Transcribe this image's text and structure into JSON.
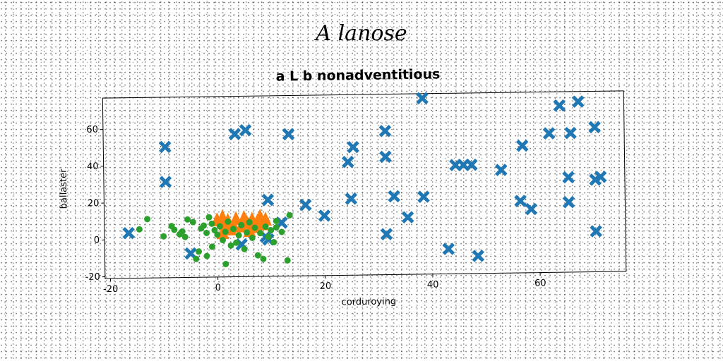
{
  "figure_title": "A lanose",
  "chart_data": {
    "type": "scatter",
    "title": "a L b nonadventitious",
    "xlabel": "corduroying",
    "ylabel": "ballaster",
    "xlim": [
      -21,
      76
    ],
    "ylim": [
      -21,
      77
    ],
    "xticks": [
      -20,
      0,
      20,
      40,
      60
    ],
    "yticks": [
      -20,
      0,
      20,
      40,
      60
    ],
    "grid": false,
    "series": [
      {
        "marker": "x",
        "color": "#1f77b4",
        "points": [
          [
            38.5,
            74.5
          ],
          [
            67.5,
            71.5
          ],
          [
            64,
            69.5
          ],
          [
            5.5,
            58.5
          ],
          [
            3.5,
            56.5
          ],
          [
            13.5,
            56
          ],
          [
            31.5,
            57
          ],
          [
            70.5,
            57.5
          ],
          [
            62,
            54.5
          ],
          [
            66,
            54.5
          ],
          [
            -9.5,
            50
          ],
          [
            25.5,
            48.5
          ],
          [
            57,
            48
          ],
          [
            31.5,
            43
          ],
          [
            24.5,
            40.5
          ],
          [
            44.5,
            38
          ],
          [
            46,
            38
          ],
          [
            47.5,
            38
          ],
          [
            53,
            35
          ],
          [
            -9.5,
            31
          ],
          [
            65.5,
            30.5
          ],
          [
            70.5,
            29
          ],
          [
            71.5,
            30.5
          ],
          [
            9.5,
            20.5
          ],
          [
            25,
            20.5
          ],
          [
            33,
            21.5
          ],
          [
            38.5,
            21
          ],
          [
            16.5,
            17.5
          ],
          [
            56.5,
            18
          ],
          [
            65.5,
            17
          ],
          [
            58.5,
            13.5
          ],
          [
            20,
            11.5
          ],
          [
            35.5,
            10
          ],
          [
            12,
            8
          ],
          [
            -16.5,
            3.5
          ],
          [
            9,
            0.5
          ],
          [
            31.5,
            1
          ],
          [
            70.5,
            1
          ],
          [
            4.5,
            -3.5
          ],
          [
            -5,
            -8
          ],
          [
            43,
            -7.5
          ],
          [
            48.5,
            -11.5
          ],
          [
            9.5,
            -1
          ]
        ]
      },
      {
        "marker": "triangle",
        "color": "#ff7f0e",
        "points": [
          [
            0,
            10
          ],
          [
            1,
            11.5
          ],
          [
            1.5,
            8
          ],
          [
            2,
            9.5
          ],
          [
            3,
            7
          ],
          [
            3.5,
            10.5
          ],
          [
            4.5,
            6.5
          ],
          [
            5,
            11
          ],
          [
            5.5,
            8.5
          ],
          [
            6.5,
            10
          ],
          [
            7,
            6
          ],
          [
            7.5,
            9
          ],
          [
            8,
            11.5
          ],
          [
            8.5,
            7.5
          ],
          [
            9,
            10
          ],
          [
            2.5,
            5
          ],
          [
            6,
            4
          ],
          [
            1,
            3
          ]
        ]
      },
      {
        "marker": "circle",
        "color": "#2ca02c",
        "points": [
          [
            -13,
            11
          ],
          [
            -8.5,
            7
          ],
          [
            -8,
            5
          ],
          [
            -7,
            2.5
          ],
          [
            -6.5,
            4
          ],
          [
            -6,
            1
          ],
          [
            -5.5,
            10.5
          ],
          [
            -4.5,
            9
          ],
          [
            -3,
            5.5
          ],
          [
            -2.5,
            7
          ],
          [
            -2,
            3
          ],
          [
            -1.5,
            11.5
          ],
          [
            -1,
            8
          ],
          [
            -0.5,
            4.5
          ],
          [
            0,
            2
          ],
          [
            0.5,
            6.5
          ],
          [
            1,
            -1
          ],
          [
            1.5,
            3.5
          ],
          [
            2,
            9
          ],
          [
            2.5,
            -4
          ],
          [
            3,
            5
          ],
          [
            3.5,
            -2.5
          ],
          [
            4,
            1.5
          ],
          [
            4.5,
            7
          ],
          [
            5,
            -6
          ],
          [
            5.5,
            3
          ],
          [
            6,
            8.5
          ],
          [
            6.5,
            0
          ],
          [
            7,
            5.5
          ],
          [
            7.5,
            -9.5
          ],
          [
            8,
            2.5
          ],
          [
            8.5,
            -11.5
          ],
          [
            9,
            6
          ],
          [
            9.5,
            0.5
          ],
          [
            10,
            4
          ],
          [
            10.5,
            -2.5
          ],
          [
            11,
            9
          ],
          [
            12,
            3
          ],
          [
            13,
            -12.5
          ],
          [
            13.5,
            12
          ],
          [
            -14.5,
            5.5
          ],
          [
            -10,
            1.5
          ],
          [
            -4,
            -11
          ],
          [
            -3.5,
            -7
          ],
          [
            -2,
            -9.5
          ],
          [
            -1,
            -4.5
          ],
          [
            1.5,
            -14
          ],
          [
            11,
            5.5
          ]
        ]
      }
    ]
  }
}
